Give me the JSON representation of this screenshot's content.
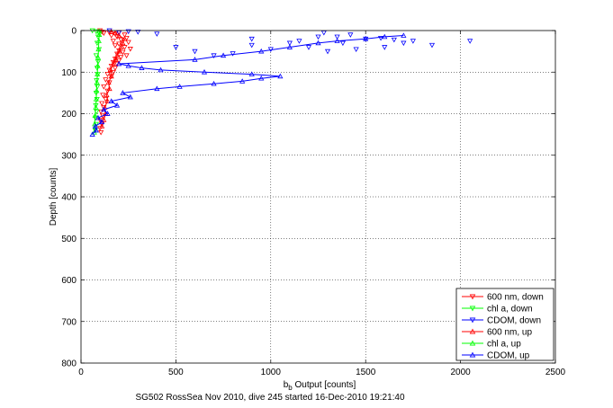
{
  "chart_data": {
    "type": "scatter",
    "title": "",
    "caption": "SG502 RossSea Nov 2010, dive 245 started 16-Dec-2010 19:21:40",
    "xlabel_main": "b",
    "xlabel_sub": "b",
    "xlabel_rest": " Output [counts]",
    "ylabel": "Depth [counts]",
    "xlim": [
      0,
      2500
    ],
    "ylim": [
      0,
      800
    ],
    "y_reversed": true,
    "grid": true,
    "grid_style": "dotted",
    "legend_position": "bottom-right",
    "xticks": [
      "0",
      "500",
      "1000",
      "1500",
      "2000",
      "2500"
    ],
    "yticks": [
      "0",
      "100",
      "200",
      "300",
      "400",
      "500",
      "600",
      "700",
      "800"
    ],
    "series": [
      {
        "name": "600 nm, down",
        "color": "#ff0000",
        "marker": "triangle-down",
        "points": [
          [
            100,
            0
          ],
          [
            110,
            3
          ],
          [
            120,
            6
          ],
          [
            150,
            5
          ],
          [
            180,
            8
          ],
          [
            200,
            4
          ],
          [
            230,
            10
          ],
          [
            160,
            12
          ],
          [
            190,
            15
          ],
          [
            240,
            18
          ],
          [
            210,
            22
          ],
          [
            170,
            25
          ],
          [
            250,
            28
          ],
          [
            200,
            32
          ],
          [
            180,
            36
          ],
          [
            230,
            40
          ],
          [
            260,
            44
          ],
          [
            200,
            48
          ],
          [
            220,
            52
          ],
          [
            190,
            56
          ],
          [
            240,
            60
          ],
          [
            210,
            64
          ],
          [
            180,
            68
          ],
          [
            200,
            72
          ],
          [
            170,
            76
          ],
          [
            190,
            80
          ],
          [
            160,
            85
          ],
          [
            180,
            90
          ],
          [
            150,
            95
          ],
          [
            170,
            100
          ],
          [
            140,
            105
          ],
          [
            160,
            110
          ],
          [
            130,
            118
          ],
          [
            150,
            125
          ],
          [
            120,
            135
          ],
          [
            140,
            145
          ],
          [
            115,
            155
          ],
          [
            130,
            165
          ],
          [
            110,
            175
          ],
          [
            120,
            185
          ],
          [
            105,
            195
          ],
          [
            115,
            205
          ],
          [
            100,
            215
          ],
          [
            110,
            225
          ],
          [
            100,
            235
          ],
          [
            105,
            245
          ]
        ]
      },
      {
        "name": "chl a, down",
        "color": "#00ff00",
        "marker": "triangle-down",
        "points": [
          [
            60,
            0
          ],
          [
            80,
            2
          ],
          [
            95,
            5
          ],
          [
            90,
            15
          ],
          [
            85,
            30
          ],
          [
            95,
            45
          ],
          [
            80,
            60
          ],
          [
            90,
            75
          ],
          [
            85,
            90
          ],
          [
            88,
            105
          ],
          [
            82,
            120
          ],
          [
            86,
            135
          ],
          [
            80,
            150
          ],
          [
            84,
            165
          ],
          [
            78,
            180
          ],
          [
            82,
            195
          ],
          [
            76,
            210
          ],
          [
            80,
            225
          ],
          [
            75,
            240
          ]
        ]
      },
      {
        "name": "CDOM, down",
        "color": "#0000ff",
        "marker": "triangle-down",
        "points": [
          [
            1280,
            5
          ],
          [
            1350,
            15
          ],
          [
            1420,
            10
          ],
          [
            1500,
            20
          ],
          [
            1580,
            18
          ],
          [
            1650,
            22
          ],
          [
            1700,
            30
          ],
          [
            1750,
            25
          ],
          [
            1850,
            35
          ],
          [
            2050,
            25
          ],
          [
            1600,
            40
          ],
          [
            1450,
            45
          ],
          [
            1380,
            30
          ],
          [
            1300,
            50
          ],
          [
            1200,
            40
          ],
          [
            1100,
            30
          ],
          [
            1000,
            45
          ],
          [
            900,
            35
          ],
          [
            800,
            55
          ],
          [
            700,
            60
          ],
          [
            600,
            50
          ],
          [
            500,
            40
          ],
          [
            400,
            8
          ],
          [
            300,
            3
          ],
          [
            250,
            2
          ],
          [
            200,
            5
          ],
          [
            150,
            0
          ],
          [
            900,
            20
          ],
          [
            1150,
            25
          ],
          [
            1250,
            15
          ]
        ]
      },
      {
        "name": "600 nm, up",
        "color": "#ff0000",
        "marker": "triangle-up",
        "points": [
          [
            110,
            230
          ],
          [
            120,
            215
          ],
          [
            130,
            200
          ],
          [
            125,
            185
          ],
          [
            140,
            170
          ],
          [
            135,
            155
          ],
          [
            150,
            140
          ],
          [
            145,
            125
          ],
          [
            160,
            110
          ],
          [
            155,
            95
          ],
          [
            170,
            80
          ],
          [
            180,
            70
          ],
          [
            190,
            60
          ],
          [
            200,
            50
          ],
          [
            210,
            40
          ],
          [
            220,
            30
          ],
          [
            230,
            20
          ],
          [
            200,
            12
          ],
          [
            180,
            6
          ],
          [
            160,
            3
          ]
        ]
      },
      {
        "name": "chl a, up",
        "color": "#00ff00",
        "marker": "triangle-up",
        "points": [
          [
            70,
            245
          ],
          [
            72,
            225
          ],
          [
            74,
            205
          ],
          [
            78,
            185
          ],
          [
            80,
            165
          ],
          [
            82,
            145
          ],
          [
            84,
            125
          ],
          [
            86,
            105
          ],
          [
            88,
            85
          ],
          [
            90,
            65
          ],
          [
            92,
            45
          ],
          [
            94,
            25
          ],
          [
            96,
            10
          ],
          [
            98,
            2
          ]
        ]
      },
      {
        "name": "CDOM, up",
        "color": "#0000ff",
        "marker": "triangle-up",
        "points": [
          [
            60,
            250
          ],
          [
            80,
            240
          ],
          [
            75,
            230
          ],
          [
            110,
            220
          ],
          [
            90,
            210
          ],
          [
            140,
            200
          ],
          [
            120,
            190
          ],
          [
            190,
            180
          ],
          [
            160,
            170
          ],
          [
            260,
            160
          ],
          [
            220,
            150
          ],
          [
            400,
            140
          ],
          [
            520,
            135
          ],
          [
            700,
            128
          ],
          [
            850,
            122
          ],
          [
            950,
            115
          ],
          [
            1050,
            110
          ],
          [
            900,
            105
          ],
          [
            650,
            100
          ],
          [
            420,
            95
          ],
          [
            320,
            90
          ],
          [
            250,
            85
          ],
          [
            200,
            80
          ],
          [
            600,
            70
          ],
          [
            750,
            60
          ],
          [
            950,
            50
          ],
          [
            1100,
            40
          ],
          [
            1250,
            30
          ],
          [
            1350,
            25
          ],
          [
            1500,
            20
          ],
          [
            1600,
            15
          ],
          [
            1700,
            12
          ]
        ]
      }
    ]
  }
}
